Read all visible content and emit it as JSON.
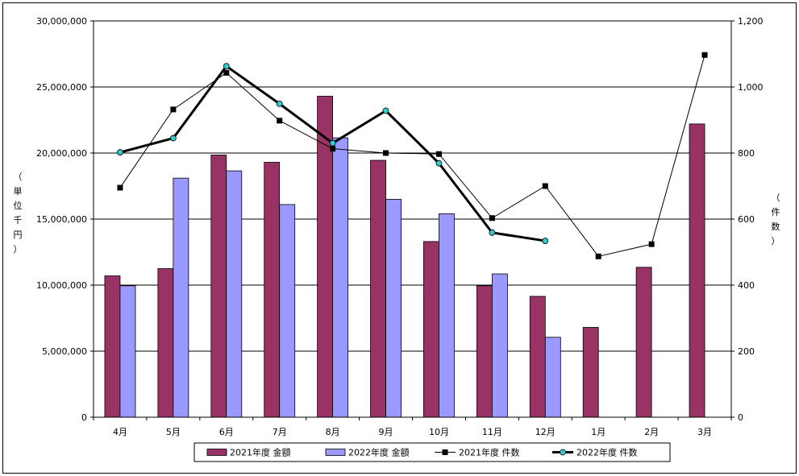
{
  "chart_data": {
    "type": "bar+line",
    "categories": [
      "4月",
      "5月",
      "6月",
      "7月",
      "8月",
      "9月",
      "10月",
      "11月",
      "12月",
      "1月",
      "2月",
      "3月"
    ],
    "left_axis": {
      "label": "（単位千円）",
      "range": [
        0,
        30000000
      ],
      "ticks": [
        "0",
        "5,000,000",
        "10,000,000",
        "15,000,000",
        "20,000,000",
        "25,000,000",
        "30,000,000"
      ]
    },
    "right_axis": {
      "label": "（件数）",
      "range": [
        0,
        1200
      ],
      "ticks": [
        "0",
        "200",
        "400",
        "600",
        "800",
        "1,000",
        "1,200"
      ]
    },
    "bar_series": [
      {
        "name": "2021年度 金額",
        "color": "#993366",
        "values": [
          10700000,
          11250000,
          19850000,
          19300000,
          24300000,
          19450000,
          13300000,
          9950000,
          9150000,
          6800000,
          11350000,
          22200000
        ]
      },
      {
        "name": "2022年度 金額",
        "color": "#9999FF",
        "values": [
          9950000,
          18100000,
          18650000,
          16100000,
          21150000,
          16500000,
          15400000,
          10850000,
          6050000,
          null,
          null,
          null
        ]
      }
    ],
    "line_series": [
      {
        "name": "2021年度 件数",
        "color": "#000000",
        "marker": "square",
        "values": [
          695,
          932,
          1043,
          898,
          813,
          800,
          797,
          603,
          700,
          487,
          524,
          1097
        ]
      },
      {
        "name": "2022年度 件数",
        "color": "#000000",
        "marker": "circle",
        "marker_fill": "#33CCCC",
        "values": [
          802,
          845,
          1063,
          949,
          830,
          928,
          769,
          559,
          534,
          null,
          null,
          null
        ]
      }
    ],
    "grid": true,
    "legend_position": "bottom"
  }
}
